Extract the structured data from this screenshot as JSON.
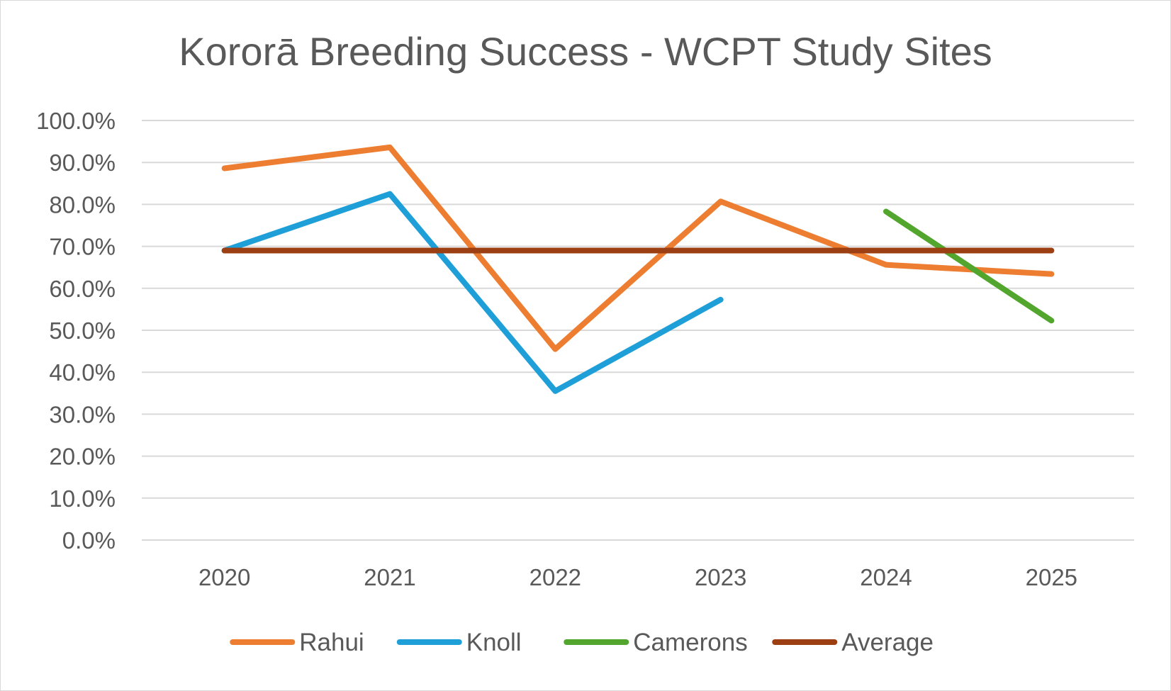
{
  "chart_data": {
    "type": "line",
    "title": "Kororā Breeding Success - WCPT Study Sites",
    "categories": [
      "2020",
      "2021",
      "2022",
      "2023",
      "2024",
      "2025"
    ],
    "y_ticks": [
      "0.0%",
      "10.0%",
      "20.0%",
      "30.0%",
      "40.0%",
      "50.0%",
      "60.0%",
      "70.0%",
      "80.0%",
      "90.0%",
      "100.0%"
    ],
    "ylim": [
      0,
      1
    ],
    "grid": true,
    "legend_position": "bottom",
    "series": [
      {
        "name": "Rahui",
        "color": "#ed7d31",
        "values": [
          0.886,
          0.936,
          0.455,
          0.807,
          0.656,
          0.634
        ]
      },
      {
        "name": "Knoll",
        "color": "#1f9fd8",
        "values": [
          0.69,
          0.825,
          0.355,
          0.573,
          null,
          null
        ]
      },
      {
        "name": "Camerons",
        "color": "#52a62d",
        "values": [
          null,
          null,
          null,
          null,
          0.783,
          0.523
        ]
      },
      {
        "name": "Average",
        "color": "#9c3f13",
        "values": [
          0.69,
          0.69,
          0.69,
          0.69,
          0.69,
          0.69
        ]
      }
    ]
  }
}
